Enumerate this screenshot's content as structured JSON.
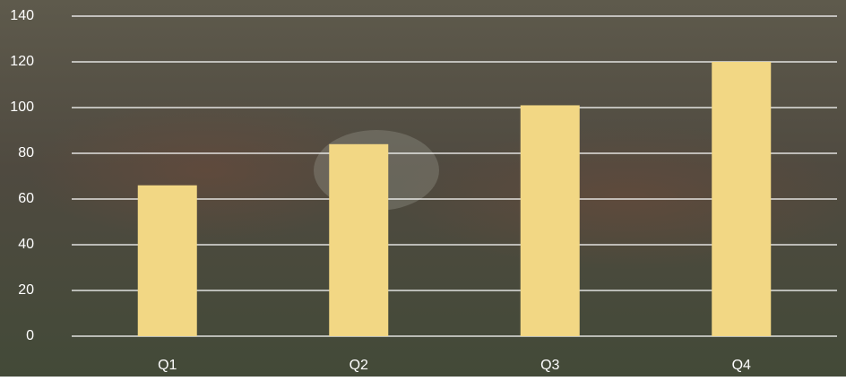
{
  "chart_data": {
    "type": "bar",
    "categories": [
      "Q1",
      "Q2",
      "Q3",
      "Q4"
    ],
    "values": [
      66,
      84,
      101,
      120
    ],
    "color": "#f2d784",
    "ylim": [
      0,
      140
    ],
    "yticks": [
      0,
      20,
      40,
      60,
      80,
      100,
      120,
      140
    ],
    "grid": true
  }
}
